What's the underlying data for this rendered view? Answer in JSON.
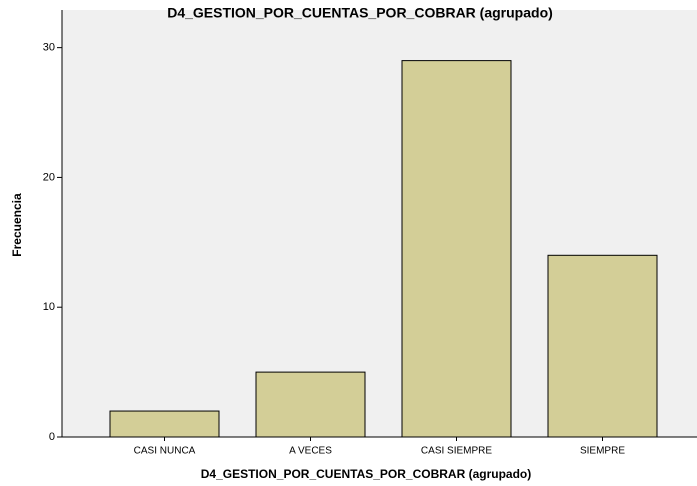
{
  "chart_data": {
    "type": "bar",
    "title": "D4_GESTION_POR_CUENTAS_POR_COBRAR (agrupado)",
    "x_label": "D4_GESTION_POR_CUENTAS_POR_COBRAR (agrupado)",
    "y_label": "Frecuencia",
    "categories": [
      "CASI NUNCA",
      "A VECES",
      "CASI SIEMPRE",
      "SIEMPRE"
    ],
    "values": [
      2,
      5,
      29,
      14
    ],
    "color": "#d3ce97",
    "ylim": [
      0,
      32.9
    ],
    "yticks": [
      0,
      10,
      20,
      30
    ]
  }
}
